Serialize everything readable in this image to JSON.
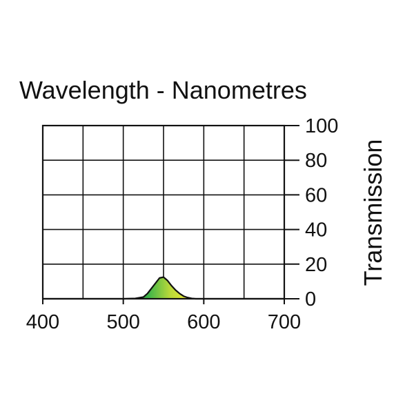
{
  "chart_data": {
    "type": "area",
    "title": "Wavelength - Nanometres",
    "xlabel": "",
    "ylabel": "Transmission",
    "xlim": [
      400,
      700
    ],
    "ylim": [
      0,
      100
    ],
    "x_ticks": [
      400,
      500,
      600,
      700
    ],
    "x_tick_labels": [
      "400",
      "500",
      "600",
      "700"
    ],
    "x_grid": [
      400,
      450,
      500,
      550,
      600,
      650,
      700
    ],
    "y_ticks": [
      0,
      20,
      40,
      60,
      80,
      100
    ],
    "y_tick_labels": [
      "0",
      "20",
      "40",
      "60",
      "80",
      "100"
    ],
    "y_axis_side": "right",
    "grid": true,
    "legend": "none",
    "series": [
      {
        "x": [
          400,
          500,
          515,
          525,
          530,
          535,
          540,
          545,
          550,
          555,
          560,
          565,
          570,
          575,
          580,
          585,
          590,
          600,
          700
        ],
        "y": [
          0,
          0,
          0.2,
          1,
          3,
          6,
          9,
          12,
          12.5,
          10.5,
          7.5,
          5,
          3,
          1.5,
          0.7,
          0.2,
          0,
          0,
          0
        ],
        "fill_gradient": [
          "#0a8a3c",
          "#43b649",
          "#b8d83a",
          "#f2ec35"
        ],
        "line_color": "#111111"
      }
    ]
  }
}
